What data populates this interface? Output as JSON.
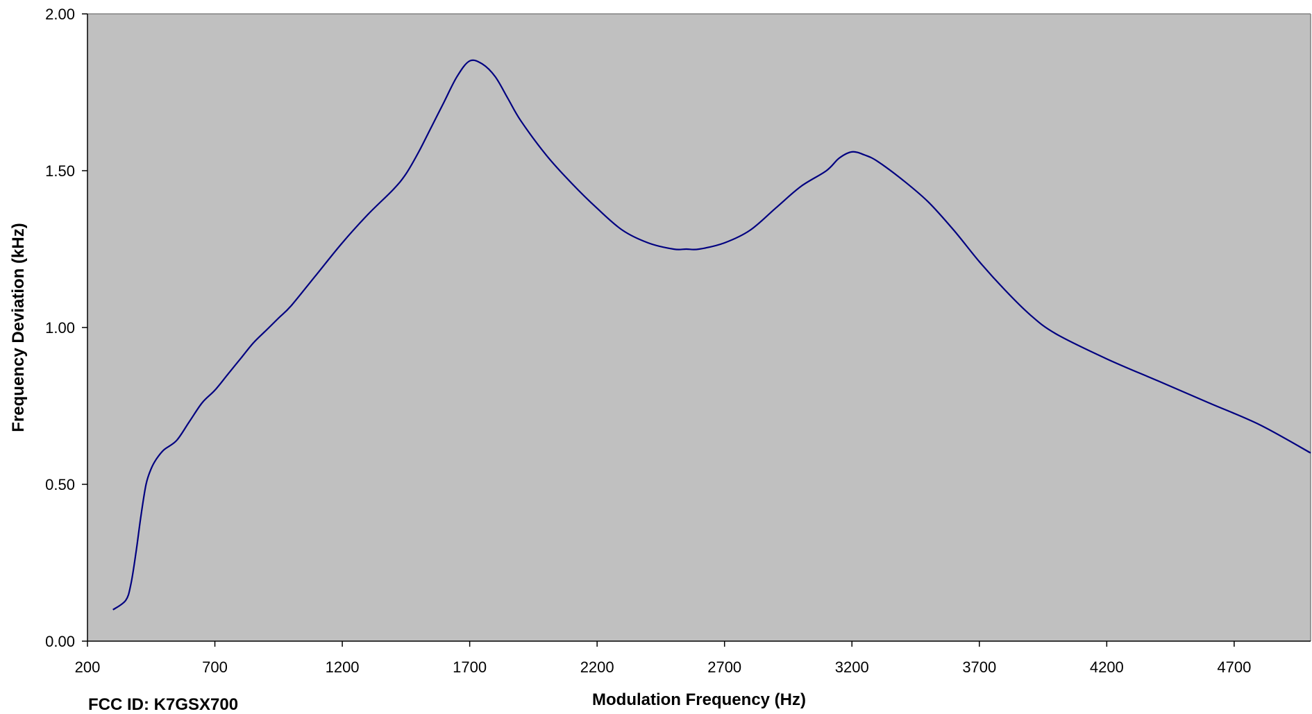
{
  "chart_data": {
    "type": "line",
    "title": "",
    "xlabel": "Modulation Frequency (Hz)",
    "ylabel": "Frequency Deviation (kHz)",
    "xlim": [
      200,
      5000
    ],
    "ylim": [
      0,
      2
    ],
    "grid": false,
    "background_color": "#c0c0c0",
    "line_color": "#000080",
    "x_ticks": [
      200,
      700,
      1200,
      1700,
      2200,
      2700,
      3200,
      3700,
      4200,
      4700
    ],
    "x_tick_labels": [
      "200",
      "700",
      "1200",
      "1700",
      "2200",
      "2700",
      "3200",
      "3700",
      "4200",
      "4700"
    ],
    "y_ticks": [
      0,
      0.5,
      1,
      1.5,
      2
    ],
    "y_tick_labels": [
      "0.00",
      "0.50",
      "1.00",
      "1.50",
      "2.00"
    ],
    "series": [
      {
        "x": [
          300,
          350,
          370,
          390,
          410,
          430,
          450,
          470,
          500,
          550,
          600,
          650,
          700,
          750,
          800,
          850,
          900,
          950,
          1000,
          1100,
          1200,
          1300,
          1400,
          1450,
          1500,
          1550,
          1600,
          1650,
          1700,
          1750,
          1800,
          1850,
          1900,
          2000,
          2100,
          2200,
          2300,
          2400,
          2500,
          2550,
          2600,
          2700,
          2800,
          2900,
          3000,
          3100,
          3150,
          3200,
          3250,
          3300,
          3400,
          3500,
          3600,
          3700,
          3800,
          3900,
          4000,
          4200,
          4400,
          4600,
          4800,
          5000
        ],
        "y": [
          0.1,
          0.13,
          0.18,
          0.28,
          0.4,
          0.5,
          0.55,
          0.58,
          0.61,
          0.64,
          0.7,
          0.76,
          0.8,
          0.85,
          0.9,
          0.95,
          0.99,
          1.03,
          1.07,
          1.17,
          1.27,
          1.36,
          1.44,
          1.49,
          1.56,
          1.64,
          1.72,
          1.8,
          1.85,
          1.84,
          1.8,
          1.73,
          1.66,
          1.55,
          1.46,
          1.38,
          1.31,
          1.27,
          1.25,
          1.25,
          1.25,
          1.27,
          1.31,
          1.38,
          1.45,
          1.5,
          1.54,
          1.56,
          1.55,
          1.53,
          1.47,
          1.4,
          1.31,
          1.21,
          1.12,
          1.04,
          0.98,
          0.9,
          0.83,
          0.76,
          0.69,
          0.6
        ]
      }
    ]
  },
  "footer": {
    "fcc_id": "FCC ID: K7GSX700"
  }
}
